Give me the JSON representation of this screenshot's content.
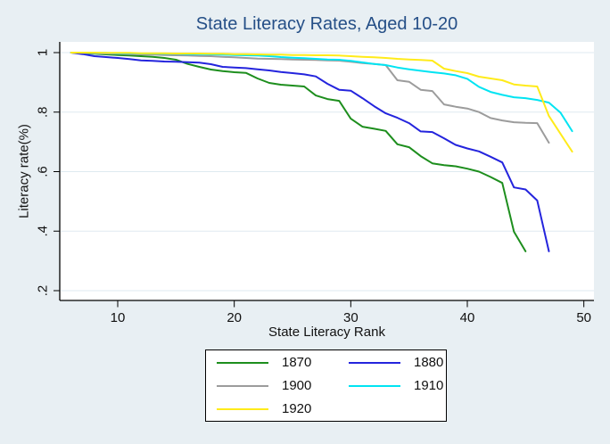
{
  "title": "State Literacy Rates, Aged 10-20",
  "colors": {
    "background": "#e8eff3",
    "plot_background": "#ffffff",
    "gridline": "#dfeaf0",
    "axis": "#000000",
    "title_text": "#254f87",
    "tick_text": "#111111"
  },
  "legend": {
    "border_color": "#000000",
    "position": "below-plot"
  },
  "chart_data": {
    "type": "line",
    "title": "State Literacy Rates, Aged 10-20",
    "xlabel": "State Literacy Rank",
    "ylabel": "Literacy rate(%)",
    "xlim": [
      5,
      51
    ],
    "ylim": [
      0.2,
      1.0
    ],
    "x_ticks": [
      10,
      20,
      30,
      40,
      50
    ],
    "y_ticks": [
      1,
      0.8,
      0.6,
      0.4,
      0.2
    ],
    "y_tick_labels": [
      "1",
      ".8",
      ".6",
      ".4",
      ".2"
    ],
    "grid": "horizontal",
    "legend_position": "bottom-center",
    "series": [
      {
        "name": "1870",
        "color": "#1d8e1d",
        "points": [
          [
            6,
            1.0
          ],
          [
            7,
            0.998
          ],
          [
            8,
            0.996
          ],
          [
            9,
            0.994
          ],
          [
            10,
            0.992
          ],
          [
            11,
            0.99
          ],
          [
            12,
            0.988
          ],
          [
            13,
            0.986
          ],
          [
            14,
            0.982
          ],
          [
            15,
            0.976
          ],
          [
            16,
            0.962
          ],
          [
            17,
            0.952
          ],
          [
            18,
            0.943
          ],
          [
            19,
            0.938
          ],
          [
            20,
            0.934
          ],
          [
            21,
            0.932
          ],
          [
            22,
            0.913
          ],
          [
            23,
            0.898
          ],
          [
            24,
            0.892
          ],
          [
            25,
            0.889
          ],
          [
            26,
            0.886
          ],
          [
            27,
            0.856
          ],
          [
            28,
            0.844
          ],
          [
            29,
            0.838
          ],
          [
            30,
            0.778
          ],
          [
            31,
            0.751
          ],
          [
            32,
            0.744
          ],
          [
            33,
            0.737
          ],
          [
            34,
            0.692
          ],
          [
            35,
            0.682
          ],
          [
            36,
            0.652
          ],
          [
            37,
            0.628
          ],
          [
            38,
            0.622
          ],
          [
            39,
            0.618
          ],
          [
            40,
            0.61
          ],
          [
            41,
            0.6
          ],
          [
            42,
            0.582
          ],
          [
            43,
            0.562
          ],
          [
            44,
            0.398
          ],
          [
            45,
            0.332
          ]
        ]
      },
      {
        "name": "1880",
        "color": "#2424dd",
        "points": [
          [
            6,
            1.0
          ],
          [
            7,
            0.995
          ],
          [
            8,
            0.988
          ],
          [
            9,
            0.985
          ],
          [
            10,
            0.982
          ],
          [
            11,
            0.978
          ],
          [
            12,
            0.974
          ],
          [
            13,
            0.972
          ],
          [
            14,
            0.97
          ],
          [
            15,
            0.969
          ],
          [
            16,
            0.968
          ],
          [
            17,
            0.966
          ],
          [
            18,
            0.961
          ],
          [
            19,
            0.952
          ],
          [
            20,
            0.95
          ],
          [
            21,
            0.948
          ],
          [
            22,
            0.944
          ],
          [
            23,
            0.94
          ],
          [
            24,
            0.935
          ],
          [
            25,
            0.931
          ],
          [
            26,
            0.927
          ],
          [
            27,
            0.92
          ],
          [
            28,
            0.895
          ],
          [
            29,
            0.875
          ],
          [
            30,
            0.872
          ],
          [
            31,
            0.847
          ],
          [
            32,
            0.82
          ],
          [
            33,
            0.796
          ],
          [
            34,
            0.781
          ],
          [
            35,
            0.763
          ],
          [
            36,
            0.735
          ],
          [
            37,
            0.733
          ],
          [
            38,
            0.712
          ],
          [
            39,
            0.69
          ],
          [
            40,
            0.678
          ],
          [
            41,
            0.668
          ],
          [
            42,
            0.65
          ],
          [
            43,
            0.631
          ],
          [
            44,
            0.547
          ],
          [
            45,
            0.54
          ],
          [
            46,
            0.503
          ],
          [
            47,
            0.332
          ]
        ]
      },
      {
        "name": "1900",
        "color": "#9c9c9c",
        "points": [
          [
            6,
            1.0
          ],
          [
            7,
            0.999
          ],
          [
            8,
            0.998
          ],
          [
            9,
            0.997
          ],
          [
            10,
            0.996
          ],
          [
            11,
            0.995
          ],
          [
            12,
            0.994
          ],
          [
            13,
            0.993
          ],
          [
            14,
            0.992
          ],
          [
            15,
            0.991
          ],
          [
            16,
            0.99
          ],
          [
            17,
            0.989
          ],
          [
            18,
            0.988
          ],
          [
            19,
            0.986
          ],
          [
            20,
            0.984
          ],
          [
            21,
            0.982
          ],
          [
            22,
            0.98
          ],
          [
            23,
            0.979
          ],
          [
            24,
            0.978
          ],
          [
            25,
            0.977
          ],
          [
            26,
            0.976
          ],
          [
            27,
            0.975
          ],
          [
            28,
            0.974
          ],
          [
            29,
            0.973
          ],
          [
            30,
            0.969
          ],
          [
            31,
            0.965
          ],
          [
            32,
            0.962
          ],
          [
            33,
            0.958
          ],
          [
            34,
            0.907
          ],
          [
            35,
            0.902
          ],
          [
            36,
            0.875
          ],
          [
            37,
            0.871
          ],
          [
            38,
            0.826
          ],
          [
            39,
            0.818
          ],
          [
            40,
            0.812
          ],
          [
            41,
            0.8
          ],
          [
            42,
            0.78
          ],
          [
            43,
            0.772
          ],
          [
            44,
            0.766
          ],
          [
            45,
            0.764
          ],
          [
            46,
            0.763
          ],
          [
            47,
            0.697
          ]
        ]
      },
      {
        "name": "1910",
        "color": "#00e4f2",
        "points": [
          [
            6,
            1.0
          ],
          [
            7,
            1.0
          ],
          [
            8,
            0.999
          ],
          [
            9,
            0.999
          ],
          [
            10,
            0.998
          ],
          [
            11,
            0.998
          ],
          [
            12,
            0.997
          ],
          [
            13,
            0.997
          ],
          [
            14,
            0.996
          ],
          [
            15,
            0.996
          ],
          [
            16,
            0.995
          ],
          [
            17,
            0.995
          ],
          [
            18,
            0.994
          ],
          [
            19,
            0.993
          ],
          [
            20,
            0.992
          ],
          [
            21,
            0.991
          ],
          [
            22,
            0.99
          ],
          [
            23,
            0.988
          ],
          [
            24,
            0.985
          ],
          [
            25,
            0.983
          ],
          [
            26,
            0.981
          ],
          [
            27,
            0.979
          ],
          [
            28,
            0.977
          ],
          [
            29,
            0.976
          ],
          [
            30,
            0.972
          ],
          [
            31,
            0.967
          ],
          [
            32,
            0.962
          ],
          [
            33,
            0.958
          ],
          [
            34,
            0.95
          ],
          [
            35,
            0.944
          ],
          [
            36,
            0.939
          ],
          [
            37,
            0.934
          ],
          [
            38,
            0.93
          ],
          [
            39,
            0.924
          ],
          [
            40,
            0.912
          ],
          [
            41,
            0.885
          ],
          [
            42,
            0.868
          ],
          [
            43,
            0.858
          ],
          [
            44,
            0.85
          ],
          [
            45,
            0.847
          ],
          [
            46,
            0.841
          ],
          [
            47,
            0.832
          ],
          [
            48,
            0.798
          ],
          [
            49,
            0.736
          ]
        ]
      },
      {
        "name": "1920",
        "color": "#ffeb1a",
        "points": [
          [
            6,
            1.0
          ],
          [
            7,
            1.0
          ],
          [
            8,
            1.0
          ],
          [
            9,
            0.999
          ],
          [
            10,
            0.999
          ],
          [
            11,
            0.999
          ],
          [
            12,
            0.998
          ],
          [
            13,
            0.998
          ],
          [
            14,
            0.998
          ],
          [
            15,
            0.997
          ],
          [
            16,
            0.997
          ],
          [
            17,
            0.997
          ],
          [
            18,
            0.996
          ],
          [
            19,
            0.996
          ],
          [
            20,
            0.995
          ],
          [
            21,
            0.995
          ],
          [
            22,
            0.994
          ],
          [
            23,
            0.993
          ],
          [
            24,
            0.993
          ],
          [
            25,
            0.992
          ],
          [
            26,
            0.992
          ],
          [
            27,
            0.991
          ],
          [
            28,
            0.991
          ],
          [
            29,
            0.99
          ],
          [
            30,
            0.988
          ],
          [
            31,
            0.986
          ],
          [
            32,
            0.984
          ],
          [
            33,
            0.982
          ],
          [
            34,
            0.979
          ],
          [
            35,
            0.977
          ],
          [
            36,
            0.975
          ],
          [
            37,
            0.973
          ],
          [
            38,
            0.946
          ],
          [
            39,
            0.938
          ],
          [
            40,
            0.931
          ],
          [
            41,
            0.919
          ],
          [
            42,
            0.913
          ],
          [
            43,
            0.907
          ],
          [
            44,
            0.893
          ],
          [
            45,
            0.889
          ],
          [
            46,
            0.886
          ],
          [
            47,
            0.787
          ],
          [
            48,
            0.727
          ],
          [
            49,
            0.667
          ]
        ]
      }
    ]
  }
}
